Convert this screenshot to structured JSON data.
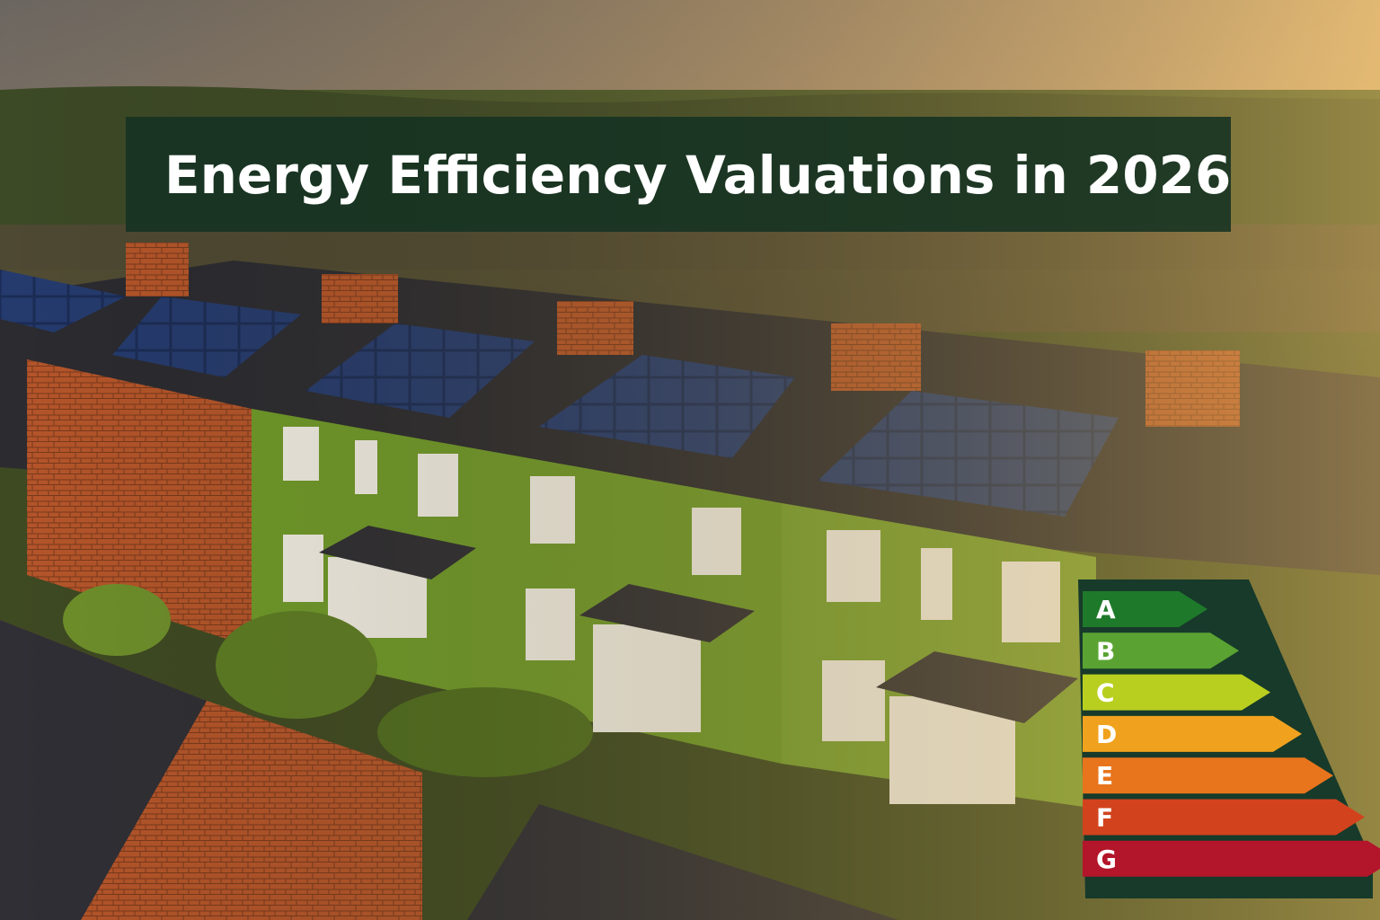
{
  "title": "Energy Efficiency Valuations in 2026",
  "rating_scale": {
    "bands": [
      "A",
      "B",
      "C",
      "D",
      "E",
      "F",
      "G"
    ]
  }
}
